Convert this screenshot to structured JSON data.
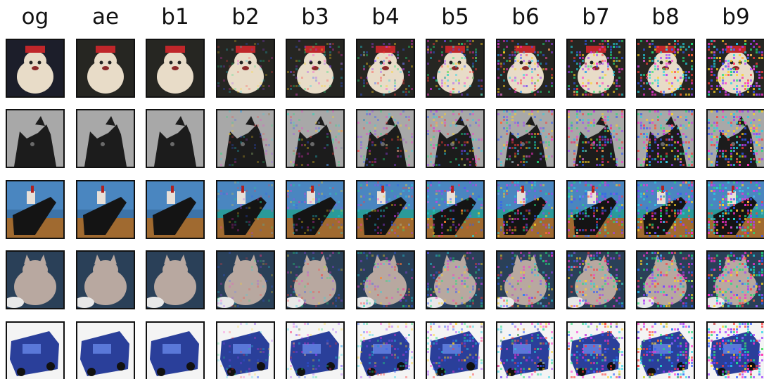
{
  "columns": [
    "og",
    "ae",
    "b1",
    "b2",
    "b3",
    "b4",
    "b5",
    "b6",
    "b7",
    "b8",
    "b9"
  ],
  "rows": [
    {
      "subject": "white-dog-with-santa-hat",
      "bg": "#1c1e2a",
      "fg": "#e8dcc8",
      "accent": "#c0262a"
    },
    {
      "subject": "grayscale-cat",
      "bg": "#bdbdbd",
      "fg": "#1c1c1c",
      "accent": "#6a6a6a"
    },
    {
      "subject": "ship-on-water",
      "bg": "#3c73a8",
      "fg": "#141414",
      "accent": "#a06a30"
    },
    {
      "subject": "tabby-cat",
      "bg": "#2a4058",
      "fg": "#b8a8a0",
      "accent": "#e8e8e8"
    },
    {
      "subject": "blue-car",
      "bg": "#ffffff",
      "fg": "#2a3f9a",
      "accent": "#c8b8a0"
    }
  ],
  "noise_palette": [
    "#ff2fd0",
    "#21e07a",
    "#2f5bff",
    "#ffd21f",
    "#ff3b3b",
    "#22d6e6",
    "#a040ff"
  ]
}
